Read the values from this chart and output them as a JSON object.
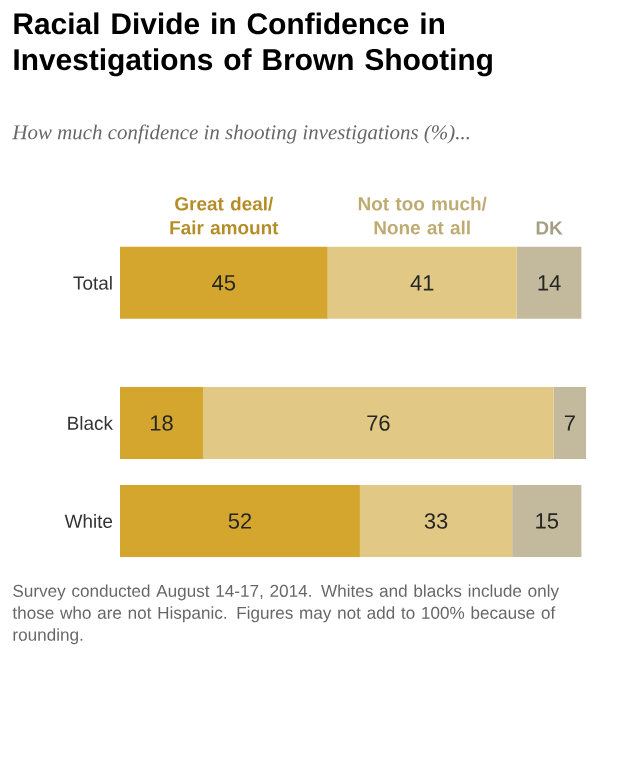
{
  "chart_data": {
    "type": "bar",
    "orientation": "horizontal",
    "stacked": true,
    "data_labels": true,
    "legend": "top",
    "title": "Racial Divide in Confidence in Investigations of Brown Shooting",
    "subtitle": "How much confidence in shooting investigations (%)...",
    "categories": [
      "Total",
      "Black",
      "White"
    ],
    "series": [
      {
        "name": "Great deal/ Fair amount",
        "color": "#d4a62e",
        "values": [
          45,
          18,
          52
        ]
      },
      {
        "name": "Not too much/ None at all",
        "color": "#e1c985",
        "values": [
          41,
          76,
          33
        ]
      },
      {
        "name": "DK",
        "color": "#c3b99c",
        "values": [
          14,
          7,
          15
        ]
      }
    ],
    "annotations": [
      "Survey conducted August 14-17, 2014. Whites and blacks include only those who are not Hispanic. Figures may not add to 100% because of rounding."
    ]
  }
}
